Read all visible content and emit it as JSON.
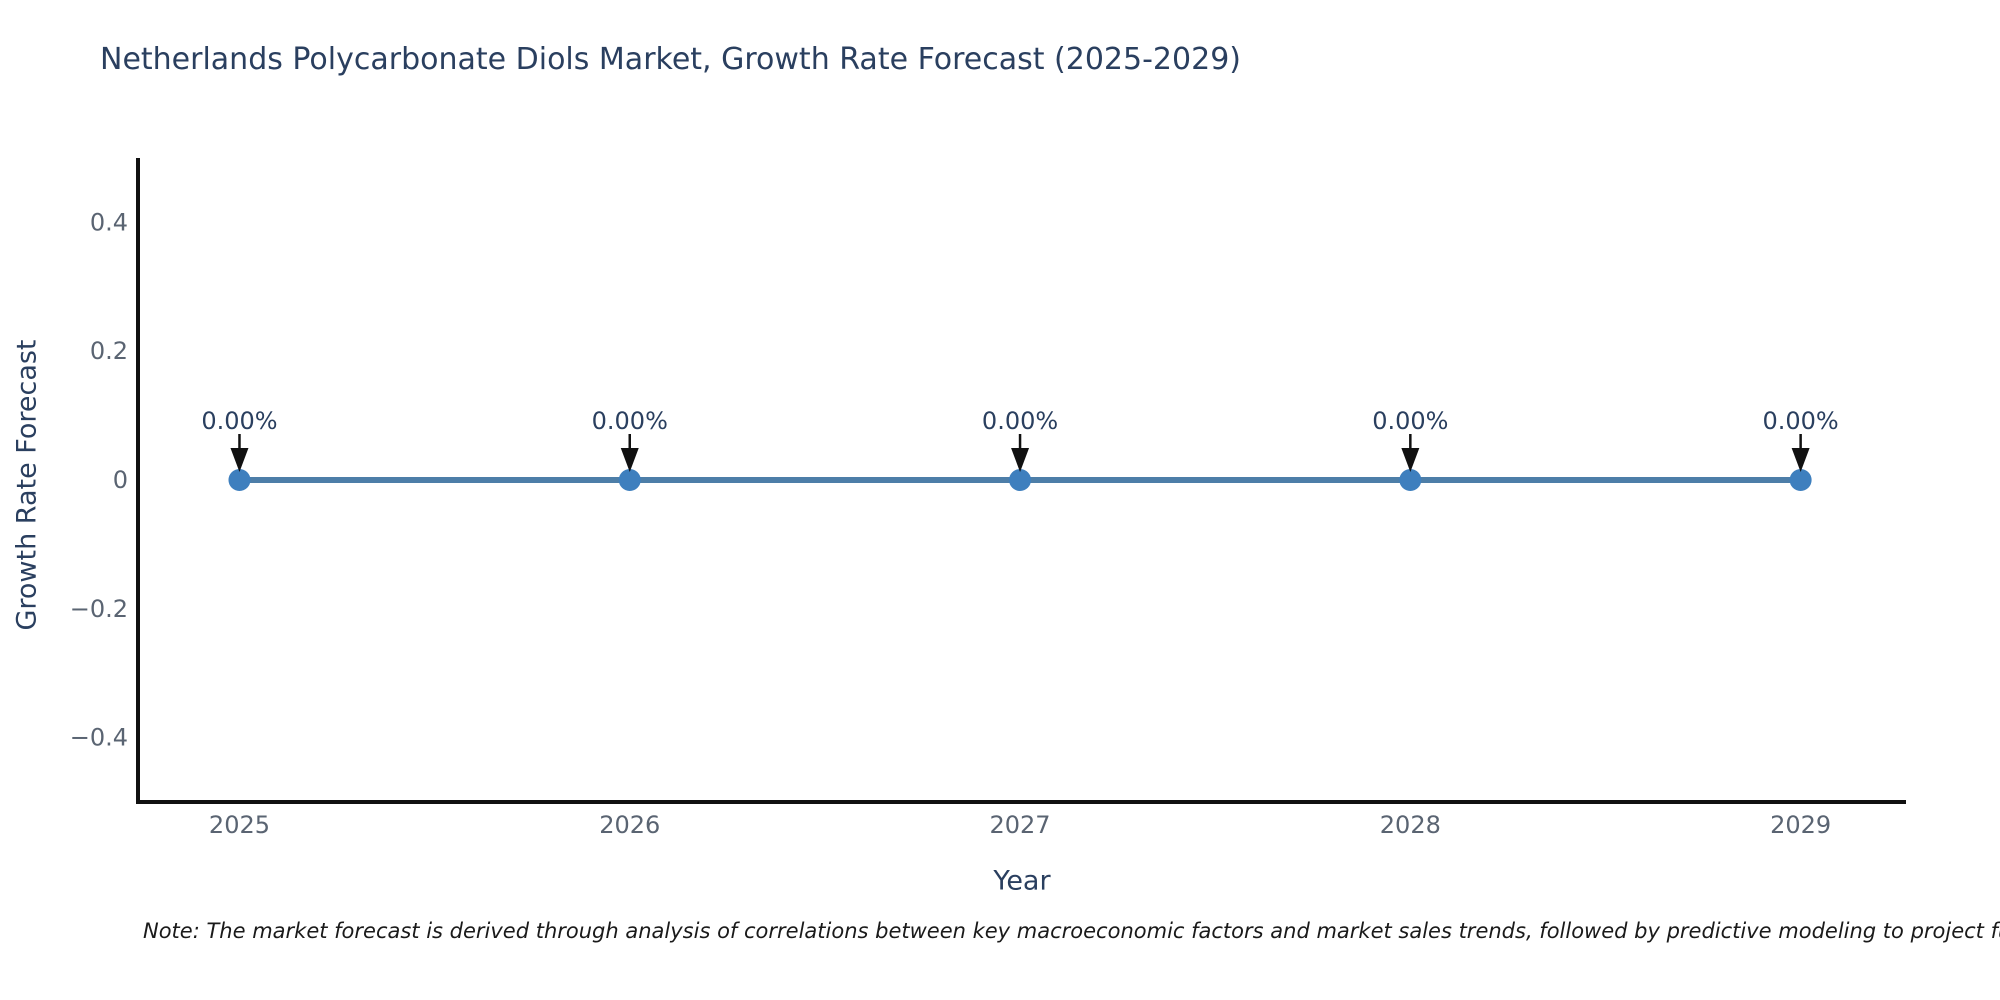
{
  "page": {
    "title": "Netherlands Polycarbonate Diols Market, Growth Rate Forecast (2025-2029)"
  },
  "note": "Note: The market forecast is derived through analysis of correlations between key macroeconomic factors and market sales trends, followed by predictive modeling to project future sales.",
  "chart_data": {
    "type": "line",
    "title": "Netherlands Polycarbonate Diols Market, Growth Rate Forecast (2025-2029)",
    "xlabel": "Year",
    "ylabel": "Growth Rate Forecast",
    "x": [
      2025,
      2026,
      2027,
      2028,
      2029
    ],
    "values": [
      0,
      0,
      0,
      0,
      0
    ],
    "point_labels": [
      "0.00%",
      "0.00%",
      "0.00%",
      "0.00%",
      "0.00%"
    ],
    "xlim": [
      2024.74,
      2029.27
    ],
    "ylim": [
      -0.5,
      0.5
    ],
    "yticks": {
      "values": [
        0.4,
        0.2,
        0,
        -0.2,
        -0.4
      ],
      "labels": [
        "0.4",
        "0.2",
        "0",
        "−0.2",
        "−0.4"
      ]
    },
    "xticks": {
      "values": [
        2025,
        2026,
        2027,
        2028,
        2029
      ],
      "labels": [
        "2025",
        "2026",
        "2027",
        "2028",
        "2029"
      ]
    },
    "grid": false,
    "legend": "none",
    "colors": {
      "line": "#4d7ea8",
      "marker": "#3e7fbe",
      "axis": "#111111",
      "arrow": "#111111",
      "tick_label": "#5a6472",
      "text": "#2a3f5f",
      "note_text": "#1a1a1a"
    }
  }
}
